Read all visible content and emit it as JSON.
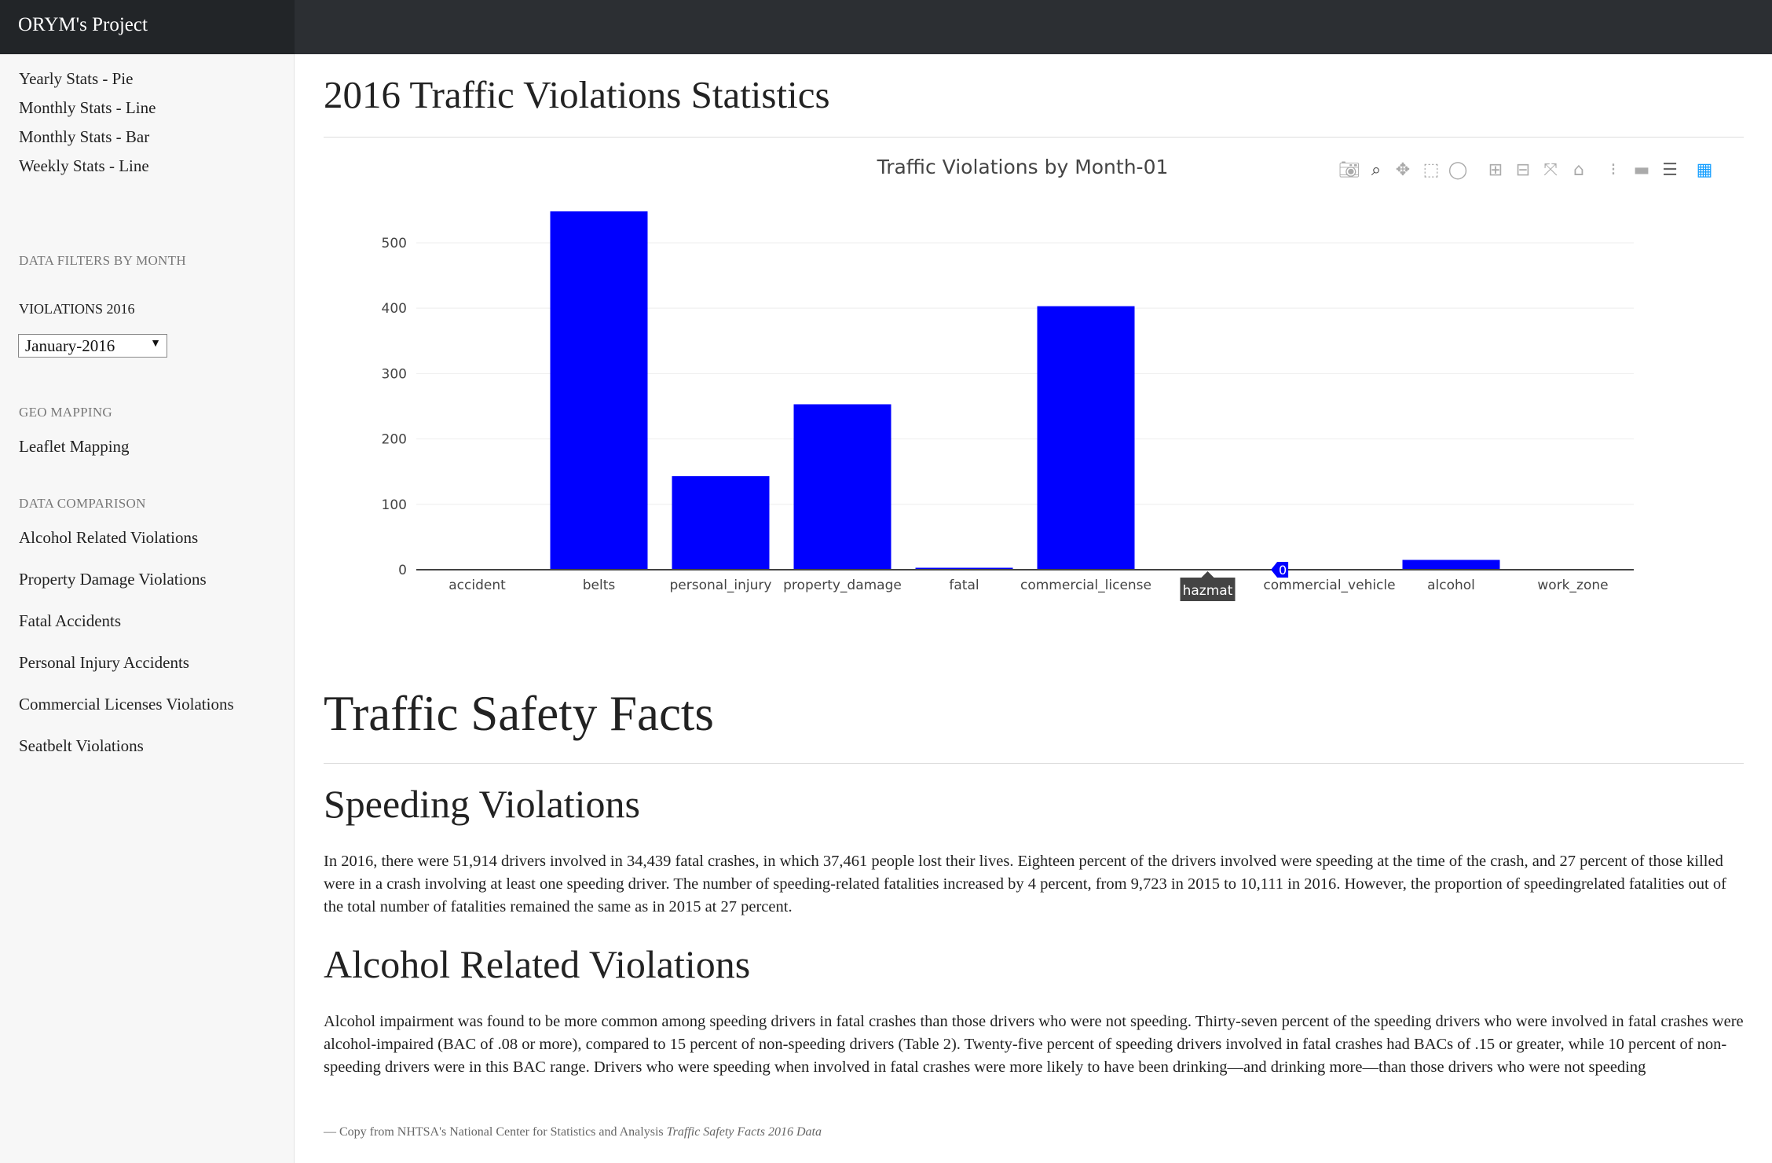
{
  "brand": "ORYM's Project",
  "sidebar": {
    "top_links": [
      "Yearly Stats - Pie",
      "Monthly Stats - Line",
      "Monthly Stats - Bar",
      "Weekly Stats - Line"
    ],
    "filters_heading": "Data Filters By Month",
    "violations_label": "VIOLATIONS 2016",
    "month_select_value": "January-2016",
    "geo_heading": "Geo Mapping",
    "geo_link": "Leaflet Mapping",
    "comparison_heading": "Data Comparison",
    "comparison_links": [
      "Alcohol Related Violations",
      "Property Damage Violations",
      "Fatal Accidents",
      "Personal Injury Accidents",
      "Commercial Licenses Violations",
      "Seatbelt Violations"
    ]
  },
  "page_title": "2016 Traffic Violations Statistics",
  "chart_data": {
    "type": "bar",
    "title": "Traffic Violations by Month-01",
    "categories": [
      "accident",
      "belts",
      "personal_injury",
      "property_damage",
      "fatal",
      "commercial_license",
      "hazmat",
      "commercial_vehicle",
      "alcohol",
      "work_zone"
    ],
    "values": [
      0,
      548,
      143,
      253,
      3,
      403,
      0,
      0,
      15,
      1
    ],
    "ylim": [
      0,
      548
    ],
    "yticks": [
      0,
      100,
      200,
      300,
      400,
      500
    ],
    "grid": true,
    "bar_color": "#0000ff",
    "hover": {
      "category": "hazmat",
      "value": "0"
    }
  },
  "modebar": [
    "camera-icon",
    "zoom-icon",
    "pan-icon",
    "box-select-icon",
    "lasso-icon",
    "zoom-in-icon",
    "zoom-out-icon",
    "autoscale-icon",
    "reset-axes-icon",
    "spike-lines-icon",
    "hover-closest-icon",
    "hover-compare-icon",
    "plotly-logo-icon"
  ],
  "facts": {
    "heading": "Traffic Safety Facts",
    "speeding_heading": "Speeding Violations",
    "speeding_text": "In 2016, there were 51,914 drivers involved in 34,439 fatal crashes, in which 37,461 people lost their lives. Eighteen percent of the drivers involved were speeding at the time of the crash, and 27 percent of those killed were in a crash involving at least one speeding driver. The number of speeding-related fatalities increased by 4 percent, from 9,723 in 2015 to 10,111 in 2016. However, the proportion of speedingrelated fatalities out of the total number of fatalities remained the same as in 2015 at 27 percent.",
    "alcohol_heading": "Alcohol Related Violations",
    "alcohol_text": "Alcohol impairment was found to be more common among speeding drivers in fatal crashes than those drivers who were not speeding. Thirty-seven percent of the speeding drivers who were involved in fatal crashes were alcohol-impaired (BAC of .08 or more), compared to 15 percent of non-speeding drivers (Table 2). Twenty-five percent of speeding drivers involved in fatal crashes had BACs of .15 or greater, while 10 percent of non-speeding drivers were in this BAC range. Drivers who were speeding when involved in fatal crashes were more likely to have been drinking—and drinking more—than those drivers who were not speeding",
    "citation_prefix": "— Copy from NHTSA's National Center for Statistics and Analysis",
    "citation_title": "Traffic Safety Facts 2016 Data"
  }
}
